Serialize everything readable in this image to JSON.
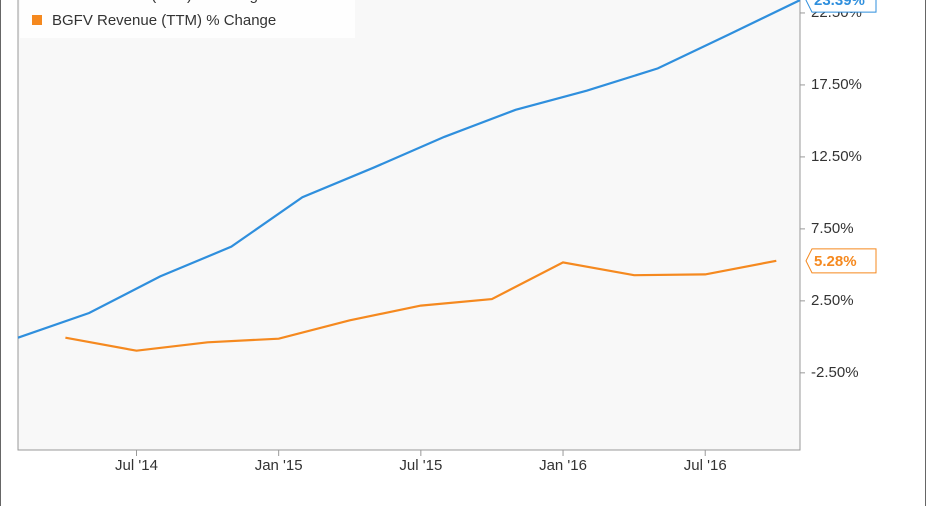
{
  "chart_data": {
    "type": "line",
    "x": [
      "2014-02",
      "2014-03",
      "2014-04",
      "2014-05",
      "2014-06",
      "2014-07",
      "2014-08",
      "2014-09",
      "2014-10",
      "2014-11",
      "2014-12",
      "2015-01",
      "2015-02",
      "2015-03",
      "2015-04",
      "2015-05",
      "2015-06",
      "2015-07",
      "2015-08",
      "2015-09",
      "2015-10",
      "2015-11",
      "2015-12",
      "2016-01",
      "2016-02",
      "2016-03",
      "2016-04",
      "2016-05",
      "2016-06",
      "2016-07",
      "2016-08",
      "2016-09",
      "2016-10",
      "2016-11"
    ],
    "series": [
      {
        "name": "DKS Revenue (TTM) % Change",
        "color": "#2f8fdd",
        "values": [
          -0.06,
          null,
          null,
          1.66,
          null,
          null,
          4.2,
          null,
          null,
          6.26,
          null,
          null,
          9.7,
          null,
          null,
          11.75,
          null,
          null,
          13.9,
          null,
          null,
          15.77,
          null,
          null,
          17.1,
          null,
          null,
          18.65,
          null,
          null,
          21.0,
          null,
          null,
          23.39
        ],
        "value_labels": [
          null,
          null,
          null,
          null,
          null,
          null,
          null,
          null,
          null,
          null,
          null,
          null,
          null,
          null,
          null,
          null,
          null,
          null,
          null,
          null,
          null,
          null,
          null,
          null,
          null,
          null,
          null,
          null,
          null,
          null,
          null,
          null,
          null,
          "23.39%"
        ]
      },
      {
        "name": "BGFV Revenue (TTM) % Change",
        "color": "#f5891f",
        "values": [
          null,
          null,
          -0.06,
          null,
          null,
          -0.96,
          null,
          null,
          -0.38,
          null,
          null,
          -0.13,
          null,
          null,
          1.15,
          null,
          null,
          2.17,
          null,
          null,
          2.62,
          null,
          null,
          5.17,
          null,
          null,
          4.28,
          null,
          null,
          4.34,
          null,
          null,
          5.28,
          null
        ],
        "value_labels": [
          null,
          null,
          null,
          null,
          null,
          null,
          null,
          null,
          null,
          null,
          null,
          null,
          null,
          null,
          null,
          null,
          null,
          null,
          null,
          null,
          null,
          null,
          null,
          null,
          null,
          null,
          null,
          null,
          null,
          null,
          null,
          null,
          "5.28%",
          null
        ]
      }
    ],
    "xlim": [
      "2014-02",
      "2016-11"
    ],
    "xticks": [
      {
        "value": "2014-07",
        "label": "Jul '14"
      },
      {
        "value": "2015-01",
        "label": "Jan '15"
      },
      {
        "value": "2015-07",
        "label": "Jul '15"
      },
      {
        "value": "2016-01",
        "label": "Jan '16"
      },
      {
        "value": "2016-07",
        "label": "Jul '16"
      }
    ],
    "ylim": [
      -7.86,
      23.4
    ],
    "yticks": [
      {
        "value": -2.5,
        "label": "-2.50%"
      },
      {
        "value": 2.5,
        "label": "2.50%"
      },
      {
        "value": 7.5,
        "label": "7.50%"
      },
      {
        "value": 12.5,
        "label": "12.50%"
      },
      {
        "value": 17.5,
        "label": "17.50%"
      },
      {
        "value": 22.5,
        "label": "22.50%"
      }
    ],
    "legend": "top-left"
  }
}
